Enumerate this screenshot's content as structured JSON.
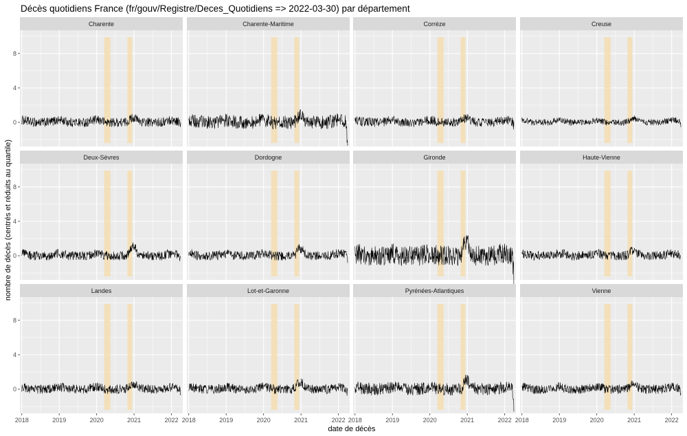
{
  "chart_data": {
    "type": "line",
    "title": "Décès quotidiens France (fr/gouv/Registre/Deces_Quotidiens => 2022-03-30) par département",
    "xlabel": "date de décès",
    "ylabel": "nombre de décès (centrés et réduits au quartile)",
    "x_ticks": [
      "2018",
      "2019",
      "2020",
      "2021",
      "2022"
    ],
    "y_ticks": [
      "0",
      "4",
      "8"
    ],
    "x_range": [
      2017.95,
      2022.3
    ],
    "y_range": [
      -2.8,
      10.7
    ],
    "x_start": "2018-01-01",
    "x_end": "2022-03-30",
    "layout": "facets 3 rows x 4 columns, shared axes",
    "grid": true,
    "highlight_periods": [
      {
        "start": 2020.2,
        "end": 2020.37,
        "color": "#f5deb3"
      },
      {
        "start": 2020.82,
        "end": 2020.95,
        "color": "#f5deb3"
      }
    ],
    "panels": [
      {
        "name": "Charente",
        "amp": 0.45,
        "peak": 0.3,
        "endDrop": 0.3
      },
      {
        "name": "Charente-Maritime",
        "amp": 0.65,
        "peak": 0.5,
        "endDrop": 2.5
      },
      {
        "name": "Corrèze",
        "amp": 0.45,
        "peak": 0.3,
        "endDrop": 0.4
      },
      {
        "name": "Creuse",
        "amp": 0.3,
        "peak": 0.2,
        "endDrop": 0.2
      },
      {
        "name": "Deux-Sèvres",
        "amp": 0.45,
        "peak": 0.8,
        "endDrop": 0.4
      },
      {
        "name": "Dordogne",
        "amp": 0.45,
        "peak": 0.6,
        "endDrop": 0.5
      },
      {
        "name": "Gironde",
        "amp": 1.0,
        "peak": 1.3,
        "endDrop": 2.6
      },
      {
        "name": "Haute-Vienne",
        "amp": 0.45,
        "peak": 0.4,
        "endDrop": 0.3
      },
      {
        "name": "Landes",
        "amp": 0.45,
        "peak": 0.4,
        "endDrop": 0.3
      },
      {
        "name": "Lot-et-Garonne",
        "amp": 0.45,
        "peak": 0.6,
        "endDrop": 0.4
      },
      {
        "name": "Pyrénées-Atlantiques",
        "amp": 0.6,
        "peak": 0.8,
        "endDrop": 2.3
      },
      {
        "name": "Vienne",
        "amp": 0.45,
        "peak": 0.4,
        "endDrop": 0.3
      }
    ]
  }
}
